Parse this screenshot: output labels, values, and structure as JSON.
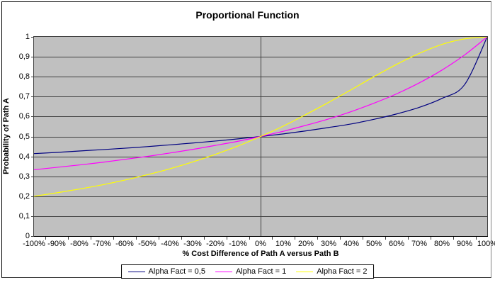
{
  "chart_data": {
    "type": "line",
    "title": "Proportional Function",
    "xlabel": "% Cost Difference of Path A versus Path B",
    "ylabel": "Probability of Path A",
    "x_tick_labels": [
      "-100%",
      "-90%",
      "-80%",
      "-70%",
      "-60%",
      "-50%",
      "-40%",
      "-30%",
      "-20%",
      "-10%",
      "0%",
      "10%",
      "20%",
      "30%",
      "40%",
      "50%",
      "60%",
      "70%",
      "80%",
      "90%",
      "100%"
    ],
    "y_tick_labels": [
      "0",
      "0,1",
      "0,2",
      "0,3",
      "0,4",
      "0,5",
      "0,6",
      "0,7",
      "0,8",
      "0,9",
      "1"
    ],
    "x": [
      -100,
      -90,
      -80,
      -70,
      -60,
      -50,
      -40,
      -30,
      -20,
      -10,
      0,
      10,
      20,
      30,
      40,
      50,
      60,
      70,
      80,
      90,
      100
    ],
    "ylim": [
      0,
      1
    ],
    "grid": true,
    "legend_position": "bottom",
    "plot_background": "#C0C0C0",
    "gridline_color": "#404040",
    "axis_color": "#000000",
    "series": [
      {
        "name": "Alpha Fact = 0,5",
        "color": "#000080",
        "values": [
          0.414,
          0.42,
          0.427,
          0.434,
          0.441,
          0.449,
          0.458,
          0.467,
          0.477,
          0.488,
          0.5,
          0.513,
          0.528,
          0.545,
          0.563,
          0.586,
          0.613,
          0.646,
          0.691,
          0.76,
          1.0
        ]
      },
      {
        "name": "Alpha Fact = 1",
        "color": "#FF00FF",
        "values": [
          0.333,
          0.345,
          0.357,
          0.37,
          0.385,
          0.4,
          0.417,
          0.435,
          0.455,
          0.476,
          0.5,
          0.526,
          0.556,
          0.588,
          0.625,
          0.667,
          0.714,
          0.769,
          0.833,
          0.909,
          1.0
        ]
      },
      {
        "name": "Alpha Fact = 2",
        "color": "#FFFF00",
        "values": [
          0.2,
          0.217,
          0.236,
          0.257,
          0.281,
          0.308,
          0.338,
          0.372,
          0.41,
          0.452,
          0.5,
          0.552,
          0.61,
          0.671,
          0.735,
          0.8,
          0.862,
          0.917,
          0.962,
          0.99,
          1.0
        ]
      }
    ]
  }
}
